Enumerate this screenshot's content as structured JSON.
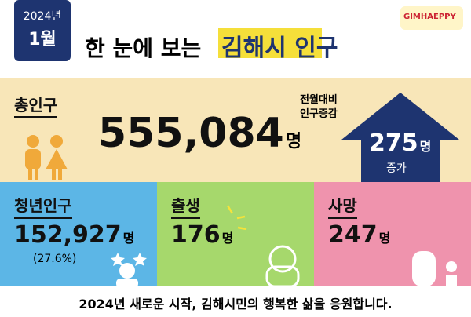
{
  "header": {
    "year": "2024년",
    "month": "1월",
    "title_lead": "한 눈에 보는",
    "title_highlight": "김해시 인구",
    "logo": "GIMHAEPPY"
  },
  "total": {
    "label": "총인구",
    "value": "555,084",
    "unit": "명"
  },
  "change": {
    "label_1": "전월대비",
    "label_2": "인구증감",
    "value": "275",
    "unit": "명",
    "note": "증가"
  },
  "youth": {
    "label": "청년인구",
    "value": "152,927",
    "unit": "명",
    "share": "(27.6%)"
  },
  "births": {
    "label": "출생",
    "value": "176",
    "unit": "명"
  },
  "deaths": {
    "label": "사망",
    "value": "247",
    "unit": "명"
  },
  "footer": "2024년 새로운 시작, 김해시민의 행복한 삶을 응원합니다."
}
